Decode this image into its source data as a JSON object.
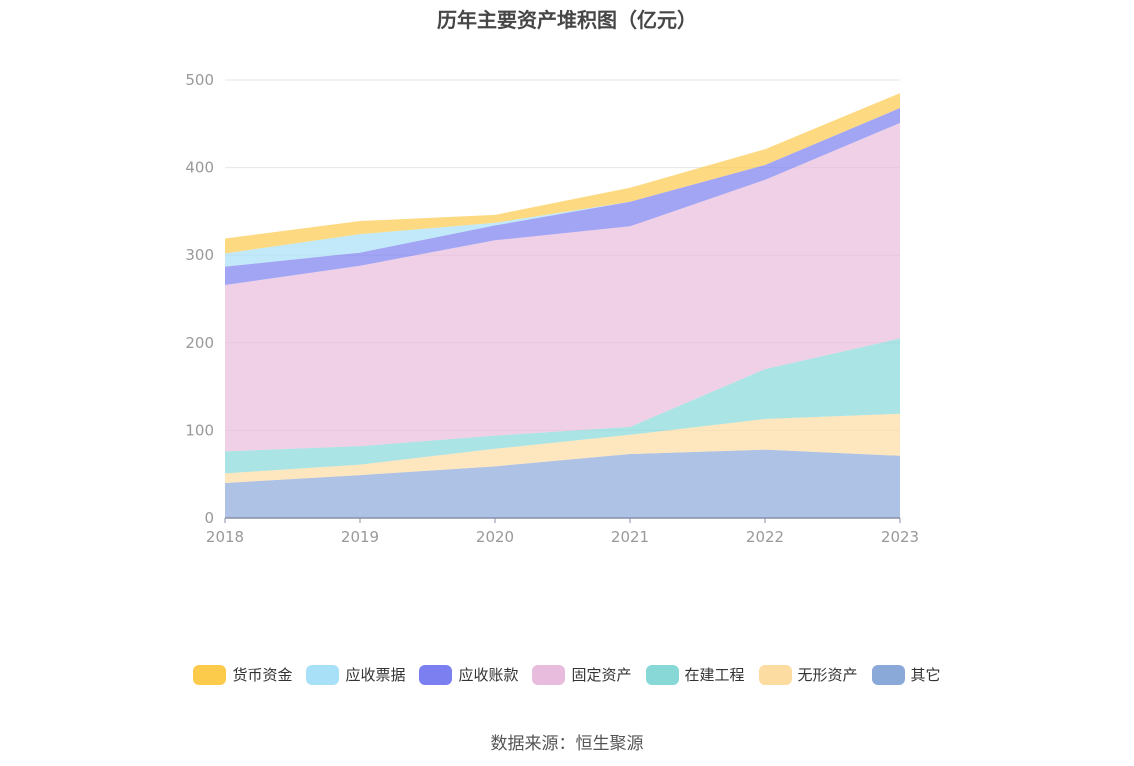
{
  "title": "历年主要资产堆积图（亿元）",
  "source_note": "数据来源：恒生聚源",
  "chart_data": {
    "type": "area",
    "stacked": true,
    "title": "历年主要资产堆积图（亿元）",
    "x": [
      "2018",
      "2019",
      "2020",
      "2021",
      "2022",
      "2023"
    ],
    "ylim": [
      0,
      500
    ],
    "yticks": [
      "0",
      "100",
      "200",
      "300",
      "400",
      "500"
    ],
    "grid": true,
    "legend_position": "bottom",
    "series": [
      {
        "name": "其它",
        "color": "#8aa8d8",
        "values": [
          40,
          49,
          59,
          73,
          78,
          71
        ]
      },
      {
        "name": "无形资产",
        "color": "#fddca2",
        "values": [
          11,
          12,
          20,
          22,
          35,
          48
        ]
      },
      {
        "name": "在建工程",
        "color": "#88d8d8",
        "values": [
          25,
          21,
          15,
          9,
          57,
          86
        ]
      },
      {
        "name": "固定资产",
        "color": "#e8bcdc",
        "values": [
          190,
          206,
          223,
          229,
          216,
          246
        ]
      },
      {
        "name": "应收账款",
        "color": "#7b7ff0",
        "values": [
          21,
          15,
          17,
          28,
          17,
          17
        ]
      },
      {
        "name": "应收票据",
        "color": "#a8e0f8",
        "values": [
          15,
          21,
          3,
          0,
          0,
          0
        ]
      },
      {
        "name": "货币资金",
        "color": "#fccb4c",
        "values": [
          17,
          15,
          9,
          16,
          18,
          17
        ]
      }
    ]
  },
  "legend": [
    {
      "label": "货币资金",
      "color": "#fccb4c"
    },
    {
      "label": "应收票据",
      "color": "#a8e0f8"
    },
    {
      "label": "应收账款",
      "color": "#7b7ff0"
    },
    {
      "label": "固定资产",
      "color": "#e8bcdc"
    },
    {
      "label": "在建工程",
      "color": "#88d8d8"
    },
    {
      "label": "无形资产",
      "color": "#fddca2"
    },
    {
      "label": "其它",
      "color": "#8aa8d8"
    }
  ]
}
